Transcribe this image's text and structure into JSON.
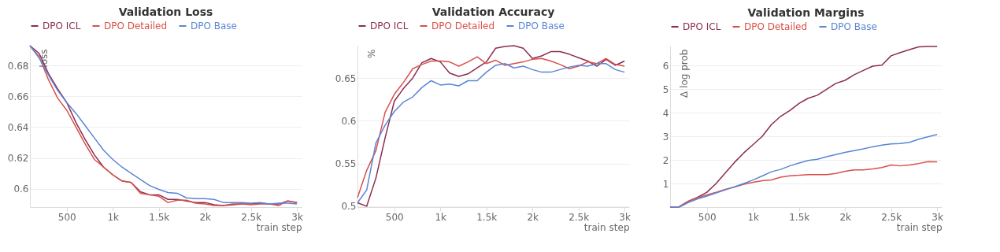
{
  "chart_data": [
    {
      "type": "line",
      "title": "Validation Loss",
      "xlabel": "train step",
      "ylabel": "loss",
      "x": [
        100,
        200,
        300,
        400,
        500,
        600,
        700,
        800,
        900,
        1000,
        1100,
        1200,
        1300,
        1400,
        1500,
        1600,
        1700,
        1800,
        1900,
        2000,
        2100,
        2200,
        2300,
        2400,
        2500,
        2600,
        2700,
        2800,
        2900,
        3000
      ],
      "series": [
        {
          "name": "DPO ICL",
          "color": "#8b2c52",
          "values": [
            0.693,
            0.688,
            0.675,
            0.665,
            0.656,
            0.643,
            0.632,
            0.622,
            0.614,
            0.609,
            0.605,
            0.604,
            0.598,
            0.596,
            0.596,
            0.593,
            0.593,
            0.592,
            0.591,
            0.591,
            0.5895,
            0.589,
            0.5895,
            0.59,
            0.59,
            0.5905,
            0.59,
            0.59,
            0.592,
            0.591
          ]
        },
        {
          "name": "DPO Detailed",
          "color": "#d9504a",
          "values": [
            0.693,
            0.686,
            0.671,
            0.659,
            0.651,
            0.64,
            0.629,
            0.619,
            0.614,
            0.609,
            0.605,
            0.604,
            0.597,
            0.596,
            0.595,
            0.591,
            0.5925,
            0.5925,
            0.5905,
            0.59,
            0.589,
            0.589,
            0.59,
            0.59,
            0.5895,
            0.59,
            0.59,
            0.589,
            0.592,
            0.591
          ]
        },
        {
          "name": "DPO Base",
          "color": "#5b85d6",
          "values": [
            0.693,
            0.685,
            0.674,
            0.664,
            0.656,
            0.649,
            0.641,
            0.633,
            0.625,
            0.619,
            0.614,
            0.61,
            0.606,
            0.602,
            0.5995,
            0.5975,
            0.597,
            0.594,
            0.5935,
            0.5935,
            0.593,
            0.591,
            0.591,
            0.591,
            0.5905,
            0.591,
            0.59,
            0.5905,
            0.5905,
            0.59
          ]
        }
      ],
      "xlim": [
        100,
        3050
      ],
      "ylim": [
        0.588,
        0.693
      ],
      "xticks": [
        {
          "value": 500,
          "label": "500"
        },
        {
          "value": 1000,
          "label": "1k"
        },
        {
          "value": 1500,
          "label": "1.5k"
        },
        {
          "value": 2000,
          "label": "2k"
        },
        {
          "value": 2500,
          "label": "2.5k"
        },
        {
          "value": 3000,
          "label": "3k"
        }
      ],
      "yticks": [
        0.6,
        0.62,
        0.64,
        0.66,
        0.68
      ],
      "grid": "y",
      "legend": "top"
    },
    {
      "type": "line",
      "title": "Validation Accuracy",
      "xlabel": "train step",
      "ylabel": "%",
      "x": [
        100,
        200,
        300,
        400,
        500,
        600,
        700,
        800,
        900,
        1000,
        1100,
        1200,
        1300,
        1400,
        1500,
        1600,
        1700,
        1800,
        1900,
        2000,
        2100,
        2200,
        2300,
        2400,
        2500,
        2600,
        2700,
        2800,
        2900,
        3000
      ],
      "series": [
        {
          "name": "DPO ICL",
          "color": "#8b2c52",
          "values": [
            0.504,
            0.5,
            0.533,
            0.58,
            0.623,
            0.638,
            0.65,
            0.668,
            0.673,
            0.669,
            0.656,
            0.652,
            0.655,
            0.662,
            0.669,
            0.685,
            0.687,
            0.688,
            0.685,
            0.673,
            0.676,
            0.681,
            0.681,
            0.678,
            0.674,
            0.67,
            0.664,
            0.672,
            0.665,
            0.67
          ]
        },
        {
          "name": "DPO Detailed",
          "color": "#d9504a",
          "values": [
            0.51,
            0.542,
            0.565,
            0.61,
            0.631,
            0.645,
            0.661,
            0.666,
            0.67,
            0.67,
            0.669,
            0.664,
            0.669,
            0.675,
            0.667,
            0.671,
            0.665,
            0.667,
            0.669,
            0.672,
            0.673,
            0.67,
            0.666,
            0.661,
            0.664,
            0.669,
            0.667,
            0.673,
            0.666,
            0.664
          ]
        },
        {
          "name": "DPO Base",
          "color": "#5b85d6",
          "values": [
            0.504,
            0.519,
            0.574,
            0.595,
            0.611,
            0.622,
            0.628,
            0.639,
            0.647,
            0.642,
            0.643,
            0.641,
            0.647,
            0.647,
            0.657,
            0.665,
            0.667,
            0.662,
            0.664,
            0.66,
            0.657,
            0.657,
            0.66,
            0.663,
            0.665,
            0.664,
            0.667,
            0.667,
            0.66,
            0.657
          ]
        }
      ],
      "xlim": [
        100,
        3050
      ],
      "ylim": [
        0.499,
        0.688
      ],
      "xticks": [
        {
          "value": 500,
          "label": "500"
        },
        {
          "value": 1000,
          "label": "1k"
        },
        {
          "value": 1500,
          "label": "1.5k"
        },
        {
          "value": 2000,
          "label": "2k"
        },
        {
          "value": 2500,
          "label": "2.5k"
        },
        {
          "value": 3000,
          "label": "3k"
        }
      ],
      "yticks": [
        0.5,
        0.55,
        0.6,
        0.65
      ],
      "grid": "y",
      "legend": "top"
    },
    {
      "type": "line",
      "title": "Validation Margins",
      "xlabel": "train step",
      "ylabel": "Δ log prob",
      "x": [
        100,
        200,
        300,
        400,
        500,
        600,
        700,
        800,
        900,
        1000,
        1100,
        1200,
        1300,
        1400,
        1500,
        1600,
        1700,
        1800,
        1900,
        2000,
        2100,
        2200,
        2300,
        2400,
        2500,
        2600,
        2700,
        2800,
        2900,
        3000
      ],
      "series": [
        {
          "name": "DPO ICL",
          "color": "#8b2c52",
          "values": [
            0,
            0.02,
            0.25,
            0.42,
            0.63,
            1.0,
            1.45,
            1.9,
            2.3,
            2.65,
            3.0,
            3.5,
            3.85,
            4.1,
            4.4,
            4.62,
            4.75,
            5.0,
            5.25,
            5.38,
            5.62,
            5.8,
            5.98,
            6.02,
            6.42,
            6.56,
            6.68,
            6.8,
            6.82,
            6.82
          ]
        },
        {
          "name": "DPO Detailed",
          "color": "#d9504a",
          "values": [
            0,
            0.02,
            0.25,
            0.4,
            0.52,
            0.63,
            0.75,
            0.85,
            0.97,
            1.05,
            1.12,
            1.15,
            1.27,
            1.33,
            1.35,
            1.38,
            1.38,
            1.38,
            1.43,
            1.52,
            1.58,
            1.58,
            1.62,
            1.68,
            1.79,
            1.75,
            1.79,
            1.85,
            1.93,
            1.92
          ]
        },
        {
          "name": "DPO Base",
          "color": "#5b85d6",
          "values": [
            0,
            0,
            0.2,
            0.35,
            0.47,
            0.6,
            0.73,
            0.86,
            1.0,
            1.15,
            1.32,
            1.5,
            1.6,
            1.75,
            1.87,
            1.98,
            2.03,
            2.14,
            2.23,
            2.32,
            2.4,
            2.47,
            2.56,
            2.63,
            2.68,
            2.7,
            2.75,
            2.88,
            2.98,
            3.08
          ]
        }
      ],
      "xlim": [
        100,
        3050
      ],
      "ylim": [
        0,
        6.85
      ],
      "xticks": [
        {
          "value": 500,
          "label": "500"
        },
        {
          "value": 1000,
          "label": "1k"
        },
        {
          "value": 1500,
          "label": "1.5k"
        },
        {
          "value": 2000,
          "label": "2k"
        },
        {
          "value": 2500,
          "label": "2.5k"
        },
        {
          "value": 3000,
          "label": "3k"
        }
      ],
      "yticks": [
        1,
        2,
        3,
        4,
        5,
        6
      ],
      "grid": "y",
      "legend": "top"
    }
  ]
}
